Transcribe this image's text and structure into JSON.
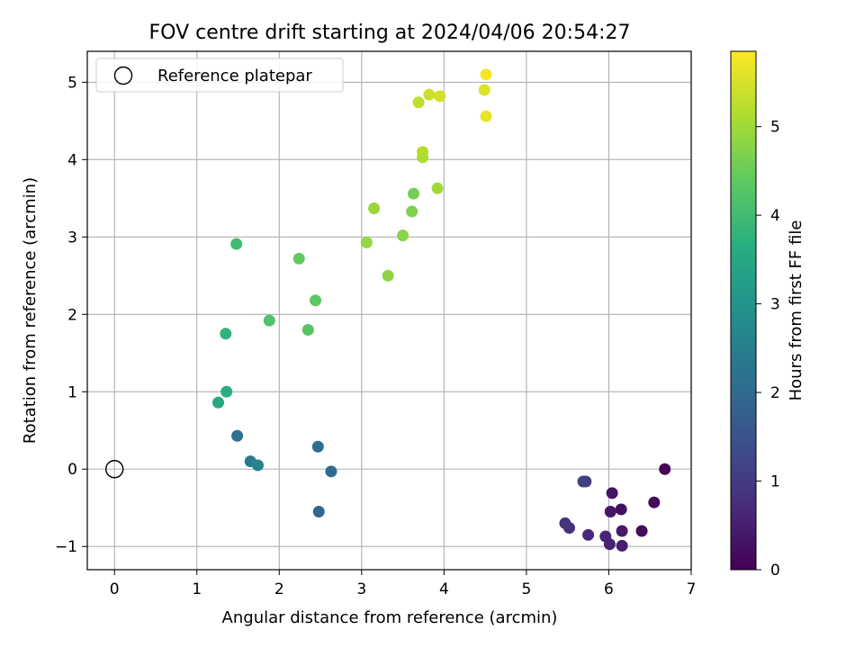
{
  "chart_data": {
    "type": "scatter",
    "title": "FOV centre drift starting at 2024/04/06 20:54:27",
    "xlabel": "Angular distance from reference (arcmin)",
    "ylabel": "Rotation from reference (arcmin)",
    "xlim": [
      -0.33,
      7.0
    ],
    "ylim": [
      -1.3,
      5.4
    ],
    "xticks": [
      0,
      1,
      2,
      3,
      4,
      5,
      6,
      7
    ],
    "yticks": [
      -1,
      0,
      1,
      2,
      3,
      4,
      5
    ],
    "xtick_labels": [
      "0",
      "1",
      "2",
      "3",
      "4",
      "5",
      "6",
      "7"
    ],
    "ytick_labels": [
      "−1",
      "0",
      "1",
      "2",
      "3",
      "4",
      "5"
    ],
    "grid": true,
    "legend": {
      "location": "upper-left",
      "entries": [
        {
          "label": "Reference platepar",
          "marker": "open-circle"
        }
      ]
    },
    "reference_point": {
      "x": 0,
      "y": 0
    },
    "colorbar": {
      "label": "Hours from first FF file",
      "colormap": "viridis",
      "range": [
        0,
        5.85
      ],
      "ticks": [
        0,
        1,
        2,
        3,
        4,
        5
      ],
      "tick_labels": [
        "0",
        "1",
        "2",
        "3",
        "4",
        "5"
      ]
    },
    "points": [
      {
        "x": 6.68,
        "y": 0.0,
        "c": 0.05
      },
      {
        "x": 6.55,
        "y": -0.43,
        "c": 0.12
      },
      {
        "x": 6.4,
        "y": -0.8,
        "c": 0.18
      },
      {
        "x": 6.15,
        "y": -0.52,
        "c": 0.24
      },
      {
        "x": 6.04,
        "y": -0.31,
        "c": 0.3
      },
      {
        "x": 6.02,
        "y": -0.55,
        "c": 0.36
      },
      {
        "x": 6.16,
        "y": -0.8,
        "c": 0.42
      },
      {
        "x": 6.16,
        "y": -0.99,
        "c": 0.48
      },
      {
        "x": 6.01,
        "y": -0.97,
        "c": 0.54
      },
      {
        "x": 5.96,
        "y": -0.87,
        "c": 0.6
      },
      {
        "x": 5.75,
        "y": -0.85,
        "c": 0.7
      },
      {
        "x": 5.52,
        "y": -0.76,
        "c": 0.8
      },
      {
        "x": 5.47,
        "y": -0.7,
        "c": 0.9
      },
      {
        "x": 5.72,
        "y": -0.16,
        "c": 1.0
      },
      {
        "x": 5.69,
        "y": -0.16,
        "c": 1.1
      },
      {
        "x": 2.48,
        "y": -0.55,
        "c": 1.9
      },
      {
        "x": 2.63,
        "y": -0.03,
        "c": 2.0
      },
      {
        "x": 2.47,
        "y": 0.29,
        "c": 2.1
      },
      {
        "x": 1.49,
        "y": 0.43,
        "c": 2.2
      },
      {
        "x": 1.65,
        "y": 0.1,
        "c": 2.4
      },
      {
        "x": 1.74,
        "y": 0.05,
        "c": 2.6
      },
      {
        "x": 1.26,
        "y": 0.86,
        "c": 3.5
      },
      {
        "x": 1.36,
        "y": 1.0,
        "c": 3.65
      },
      {
        "x": 1.35,
        "y": 1.75,
        "c": 3.8
      },
      {
        "x": 1.48,
        "y": 2.91,
        "c": 4.0
      },
      {
        "x": 1.88,
        "y": 1.92,
        "c": 4.2
      },
      {
        "x": 2.35,
        "y": 1.8,
        "c": 4.3
      },
      {
        "x": 2.44,
        "y": 2.18,
        "c": 4.35
      },
      {
        "x": 2.24,
        "y": 2.72,
        "c": 4.4
      },
      {
        "x": 3.63,
        "y": 3.56,
        "c": 4.6
      },
      {
        "x": 3.61,
        "y": 3.33,
        "c": 4.7
      },
      {
        "x": 3.5,
        "y": 3.02,
        "c": 4.8
      },
      {
        "x": 3.32,
        "y": 2.5,
        "c": 4.85
      },
      {
        "x": 3.06,
        "y": 2.93,
        "c": 4.9
      },
      {
        "x": 3.15,
        "y": 3.37,
        "c": 4.95
      },
      {
        "x": 3.92,
        "y": 3.63,
        "c": 5.0
      },
      {
        "x": 3.74,
        "y": 4.03,
        "c": 5.1
      },
      {
        "x": 3.74,
        "y": 4.1,
        "c": 5.2
      },
      {
        "x": 3.69,
        "y": 4.74,
        "c": 5.3
      },
      {
        "x": 3.82,
        "y": 4.84,
        "c": 5.4
      },
      {
        "x": 3.95,
        "y": 4.82,
        "c": 5.45
      },
      {
        "x": 4.49,
        "y": 4.9,
        "c": 5.55
      },
      {
        "x": 4.51,
        "y": 4.56,
        "c": 5.65
      },
      {
        "x": 4.51,
        "y": 5.1,
        "c": 5.8
      }
    ]
  }
}
